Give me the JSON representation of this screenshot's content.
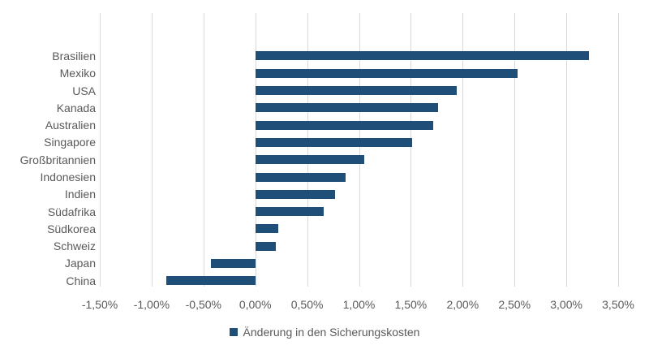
{
  "chart_data": {
    "type": "bar",
    "orientation": "horizontal",
    "title": "",
    "xlabel": "",
    "ylabel": "",
    "categories": [
      "Brasilien",
      "Mexiko",
      "USA",
      "Kanada",
      "Australien",
      "Singapore",
      "Großbritannien",
      "Indonesien",
      "Indien",
      "Südafrika",
      "Südkorea",
      "Schweiz",
      "Japan",
      "China"
    ],
    "series": [
      {
        "name": "Änderung in den Sicherungskosten",
        "values": [
          3.22,
          2.53,
          1.94,
          1.76,
          1.72,
          1.51,
          1.05,
          0.87,
          0.77,
          0.66,
          0.22,
          0.2,
          -0.43,
          -0.86
        ]
      }
    ],
    "value_unit": "%",
    "xlim": [
      -1.5,
      3.5
    ],
    "x_tick_interval": 0.5,
    "x_tick_labels": [
      "-1,50%",
      "-1,00%",
      "-0,50%",
      "0,00%",
      "0,50%",
      "1,00%",
      "1,50%",
      "2,00%",
      "2,50%",
      "3,00%",
      "3,50%"
    ],
    "grid": true,
    "legend": {
      "position": "bottom",
      "label": "Änderung in den Sicherungskosten"
    },
    "colors": {
      "bar": "#1F4E79",
      "gridline": "#D9D9D9",
      "axis_text": "#595959",
      "background": "#FFFFFF"
    }
  }
}
